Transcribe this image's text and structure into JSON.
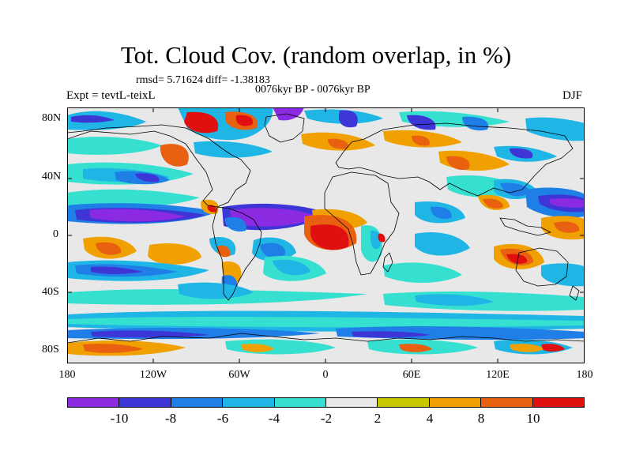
{
  "title": "Tot. Cloud Cov. (random overlap, in %)",
  "stats": "rmsd= 5.71624 diff= -1.38183",
  "period": "0076kyr BP - 0076kyr BP",
  "experiment": "Expt = tevtL-teixL",
  "season": "DJF",
  "y_ticks": [
    "80N",
    "40N",
    "0",
    "40S",
    "80S"
  ],
  "x_ticks": [
    "180",
    "120W",
    "60W",
    "0",
    "60E",
    "120E",
    "180"
  ],
  "colorbar": {
    "labels": [
      "-10",
      "-8",
      "-6",
      "-4",
      "-2",
      "2",
      "4",
      "8",
      "10"
    ],
    "colors": [
      "#8a2be2",
      "#3d35d6",
      "#1f7fe6",
      "#1fb6e6",
      "#36e0d0",
      "#e8e8e8",
      "#c8c800",
      "#f0a000",
      "#e86010",
      "#e01010"
    ]
  },
  "map": {
    "colors": {
      "neutral": "#e8e8e8",
      "purple": "#8a2be2",
      "darkblue": "#3d35d6",
      "blue": "#1f7fe6",
      "cyan": "#1fb6e6",
      "teal": "#36e0d0",
      "yellow": "#c8c800",
      "orange": "#f0a000",
      "redorange": "#e86010",
      "red": "#e01010"
    }
  }
}
